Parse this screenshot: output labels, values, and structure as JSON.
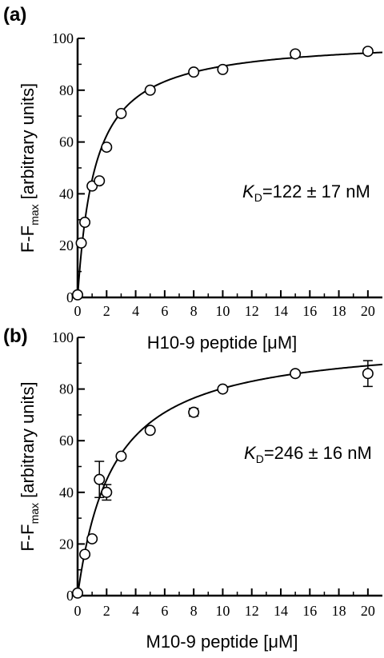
{
  "chart_data": [
    {
      "type": "scatter",
      "panel": "(a)",
      "xlabel": "H10-9 peptide [μM]",
      "ylabel_main": "F-F",
      "ylabel_sub": "max",
      "ylabel_tail": " [arbitrary units]",
      "annotation": {
        "k": "K",
        "sub": "D",
        "text": "=122 ± 17 nM"
      },
      "xlim": [
        0,
        21
      ],
      "ylim": [
        0,
        100
      ],
      "xticks": [
        0,
        2,
        4,
        6,
        8,
        10,
        12,
        14,
        16,
        18,
        20
      ],
      "yticks": [
        0,
        20,
        40,
        60,
        80,
        100
      ],
      "points": [
        {
          "x": 0,
          "y": 1
        },
        {
          "x": 0.25,
          "y": 21
        },
        {
          "x": 0.5,
          "y": 29
        },
        {
          "x": 1,
          "y": 43
        },
        {
          "x": 1.5,
          "y": 45
        },
        {
          "x": 2,
          "y": 58
        },
        {
          "x": 3,
          "y": 71
        },
        {
          "x": 5,
          "y": 80
        },
        {
          "x": 8,
          "y": 87
        },
        {
          "x": 10,
          "y": 88
        },
        {
          "x": 15,
          "y": 94
        },
        {
          "x": 20,
          "y": 95
        }
      ],
      "fit": {
        "type": "hyperbolic",
        "max": 100,
        "k": 1.2
      }
    },
    {
      "type": "scatter",
      "panel": "(b)",
      "xlabel": "M10-9 peptide [μM]",
      "ylabel_main": "F-F",
      "ylabel_sub": "max",
      "ylabel_tail": " [arbitrary units]",
      "annotation": {
        "k": "K",
        "sub": "D",
        "text": "=246 ± 16 nM"
      },
      "xlim": [
        0,
        21
      ],
      "ylim": [
        0,
        100
      ],
      "xticks": [
        0,
        2,
        4,
        6,
        8,
        10,
        12,
        14,
        16,
        18,
        20
      ],
      "yticks": [
        0,
        20,
        40,
        60,
        80,
        100
      ],
      "points": [
        {
          "x": 0,
          "y": 1
        },
        {
          "x": 0.5,
          "y": 16
        },
        {
          "x": 1,
          "y": 22
        },
        {
          "x": 1.5,
          "y": 45,
          "err": 7
        },
        {
          "x": 2,
          "y": 40,
          "err": 3
        },
        {
          "x": 3,
          "y": 54
        },
        {
          "x": 5,
          "y": 64
        },
        {
          "x": 8,
          "y": 71,
          "err": 1.5
        },
        {
          "x": 10,
          "y": 80
        },
        {
          "x": 15,
          "y": 86
        },
        {
          "x": 20,
          "y": 86,
          "err": 5
        }
      ],
      "fit": {
        "type": "hyperbolic",
        "max": 100,
        "k": 2.46
      }
    }
  ]
}
